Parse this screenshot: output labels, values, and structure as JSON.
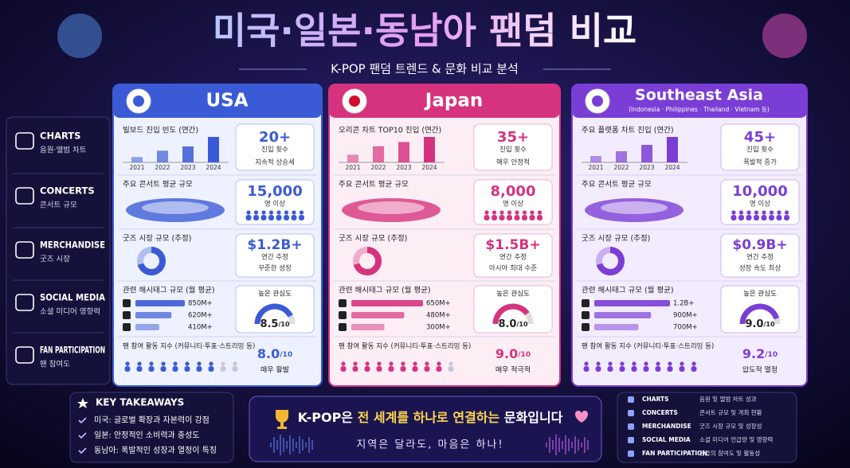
{
  "header": {
    "title": "미국·일본·동남아 팬덤 비교",
    "subtitle": "K-POP 팬덤 트렌드 & 문화 비교 분석"
  },
  "sidebar": [
    {
      "title": "CHARTS",
      "sub": "음원·앨범 차트"
    },
    {
      "title": "CONCERTS",
      "sub": "콘서트 규모"
    },
    {
      "title": "MERCHANDISE",
      "sub": "굿즈 시장"
    },
    {
      "title": "SOCIAL MEDIA",
      "sub": "소셜 미디어 영향력"
    },
    {
      "title": "FAN PARTICIPATION",
      "sub": "팬 참여도"
    }
  ],
  "regions": [
    {
      "name": "USA",
      "color": "#3b5bd6",
      "charts": {
        "label": "빌보드 진입 빈도 (연간)",
        "years": [
          "2021",
          "2022",
          "2023",
          "2024"
        ],
        "values": [
          5,
          11,
          15,
          24
        ],
        "value": "20+",
        "unit": "진입 횟수",
        "note": "지속적 상승세"
      },
      "concerts": {
        "label": "주요 콘서트 평균 규모",
        "value": "15,000",
        "unit": "명 이상"
      },
      "merchandise": {
        "label": "굿즈 시장 규모 (추정)",
        "value": "$1.2B+",
        "unit": "연간 추정",
        "note": "꾸준한 성장"
      },
      "social": {
        "label": "관련 해시태그 규모 (월 평균)",
        "values": [
          850,
          620,
          410
        ],
        "value_labels": [
          "850M+",
          "620M+",
          "410M+"
        ],
        "gauge_label": "높은 관심도",
        "score": 8.5,
        "score_max": 10,
        "score_suffix": "/10"
      },
      "fan": {
        "label": "팬 참여 활동 지수 (커뮤니티·투표·스트리밍 등)",
        "score": {
          "value": 8,
          "label": "8.0"
        },
        "score_suffix": "/10",
        "note": "매우 활발"
      }
    },
    {
      "name": "Japan",
      "color": "#d6337e",
      "charts": {
        "label": "오리콘 차트 TOP10 진입 (연간)",
        "years": [
          "2021",
          "2022",
          "2023",
          "2024"
        ],
        "values": [
          9,
          19,
          24,
          30
        ],
        "value": "35+",
        "unit": "진입 횟수",
        "note": "매우 안정적"
      },
      "concerts": {
        "label": "주요 콘서트 평균 규모",
        "value": "8,000",
        "unit": "명 이상"
      },
      "merchandise": {
        "label": "굿즈 시장 규모 (추정)",
        "value": "$1.5B+",
        "unit": "연간 추정",
        "note": "아시아 최대 수준"
      },
      "social": {
        "label": "관련 해시태그 규모 (월 평균)",
        "values": [
          650,
          480,
          300
        ],
        "value_labels": [
          "650M+",
          "480M+",
          "300M+"
        ],
        "gauge_label": "높은 관심도",
        "score": {
          "value": 8,
          "label": "8.0"
        },
        "score_max": 10,
        "score_suffix": "/10"
      },
      "fan": {
        "label": "팬 참여 활동 지수 (커뮤니티·투표·스트리밍 등)",
        "score": {
          "value": 9,
          "label": "9.0"
        },
        "score_suffix": "/10",
        "note": "매우 적극적"
      }
    },
    {
      "name": "Southeast Asia",
      "subtitle": "(Indonesia · Philippines · Thailand · Vietnam 등)",
      "color": "#7a3ed6",
      "charts": {
        "label": "주요 플랫폼 차트 진입 (연간)",
        "years": [
          "2021",
          "2022",
          "2023",
          "2024"
        ],
        "values": [
          8,
          14,
          22,
          32
        ],
        "value": "45+",
        "unit": "진입 횟수",
        "note": "폭발적 증가"
      },
      "concerts": {
        "label": "주요 콘서트 평균 규모",
        "value": "10,000",
        "unit": "명 이상"
      },
      "merchandise": {
        "label": "굿즈 시장 규모 (추정)",
        "value": "$0.9B+",
        "unit": "연간 추정",
        "note": "성장 속도 최상"
      },
      "social": {
        "label": "관련 해시태그 규모 (월 평균)",
        "values": [
          1200,
          900,
          700
        ],
        "value_labels": [
          "1.2B+",
          "900M+",
          "700M+"
        ],
        "gauge_label": "높은 관심도",
        "score": {
          "value": 9,
          "label": "9.0"
        },
        "score_max": 10,
        "score_suffix": "/10"
      },
      "fan": {
        "label": "팬 참여 활동 지수 (커뮤니티·투표·스트리밍 등)",
        "score": 9.2,
        "score_suffix": "/10",
        "note": "압도적 열정"
      }
    }
  ],
  "takeaways": {
    "title": "KEY TAKEAWAYS",
    "items": [
      "미국: 글로벌 확장과 자본력이 강점",
      "일본: 안정적인 소비력과 충성도",
      "동남아: 폭발적인 성장과 열정이 특징"
    ]
  },
  "banner": {
    "parts": [
      "K-POP은 ",
      "전 세계를 하나로 연결하는",
      " 문화입니다"
    ],
    "sub": "지역은 달라도, 마음은 하나!"
  },
  "legend": [
    {
      "title": "CHARTS",
      "desc": "음원 및 앨범 차트 성과"
    },
    {
      "title": "CONCERTS",
      "desc": "콘서트 규모 및 개최 현황"
    },
    {
      "title": "MERCHANDISE",
      "desc": "굿즈 시장 규모 및 성장성"
    },
    {
      "title": "SOCIAL MEDIA",
      "desc": "소셜 미디어 언급량 및 영향력"
    },
    {
      "title": "FAN PARTICIPATION",
      "desc": "팬들의 참여도 및 활동성"
    }
  ]
}
